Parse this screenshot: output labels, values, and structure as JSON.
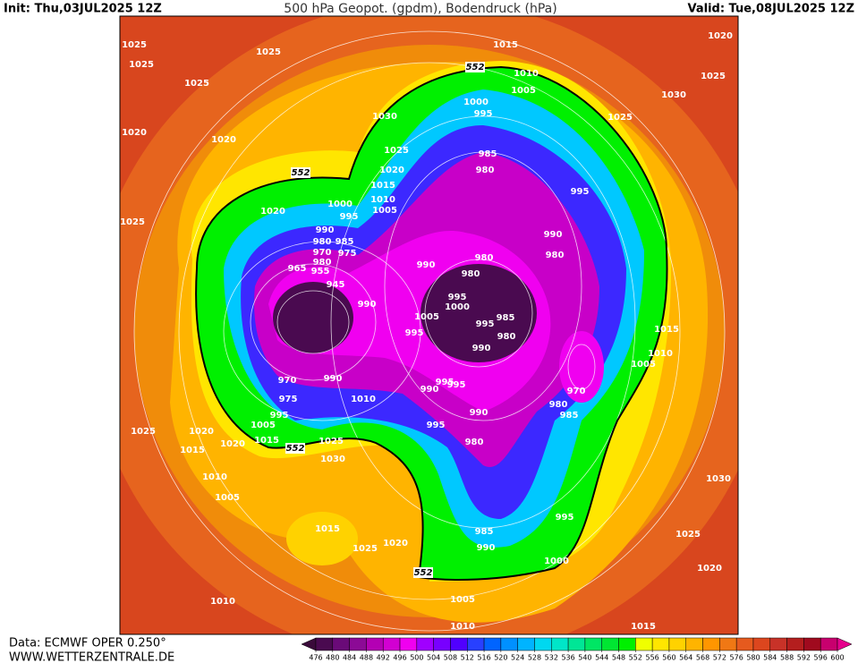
{
  "header": {
    "init": "Init: Thu,03JUL2025 12Z",
    "title": "500 hPa Geopot. (gpdm), Bodendruck (hPa)",
    "valid": "Valid: Tue,08JUL2025 12Z"
  },
  "footer": {
    "source": "Data: ECMWF OPER 0.250°",
    "website": "WWW.WETTERZENTRALE.DE"
  },
  "colorbar": {
    "levels": [
      476,
      480,
      484,
      488,
      492,
      496,
      500,
      504,
      508,
      512,
      516,
      520,
      524,
      528,
      532,
      536,
      540,
      544,
      548,
      552,
      556,
      560,
      564,
      568,
      572,
      576,
      580,
      584,
      588,
      592,
      596,
      600
    ],
    "colors": [
      "#3a0a3a",
      "#4a0a50",
      "#6a0a78",
      "#8c0a96",
      "#b400b4",
      "#d200d2",
      "#f000f0",
      "#a000ff",
      "#7800ff",
      "#5000ff",
      "#2840ff",
      "#0064ff",
      "#0090ff",
      "#00b4ff",
      "#00d8f0",
      "#00e6c8",
      "#00e696",
      "#00e664",
      "#00e632",
      "#00f000",
      "#f0ff00",
      "#ffe600",
      "#ffd200",
      "#ffb400",
      "#ff9600",
      "#f07814",
      "#e65a1e",
      "#dc461e",
      "#c83228",
      "#b41e1e",
      "#a00a1e",
      "#c8006e",
      "#e6008c"
    ]
  },
  "contour_552_labels": [
    552,
    552,
    552,
    552
  ],
  "isobar_labels": [
    1025,
    1025,
    1025,
    1025,
    1020,
    1020,
    1030,
    1025,
    1020,
    1015,
    1010,
    1005,
    1000,
    995,
    1020,
    990,
    985,
    980,
    975,
    970,
    980,
    965,
    955,
    945,
    990,
    1015,
    1010,
    1005,
    1000,
    995,
    985,
    980,
    995,
    990,
    980,
    990,
    980,
    980,
    995,
    1000,
    1005,
    995,
    995,
    985,
    980,
    990,
    970,
    990,
    975,
    1010,
    1005,
    995,
    1015,
    1025,
    1030,
    970,
    980,
    985,
    990,
    995,
    980,
    995,
    990,
    995,
    1020,
    1025,
    1030,
    1025,
    1015,
    1010,
    1005,
    1030,
    1025,
    1020,
    1015,
    1010,
    1005,
    1000,
    990,
    985,
    995,
    1020,
    1025,
    1015,
    1005,
    1010,
    1015,
    1020,
    1020,
    1025,
    1010,
    1025
  ]
}
